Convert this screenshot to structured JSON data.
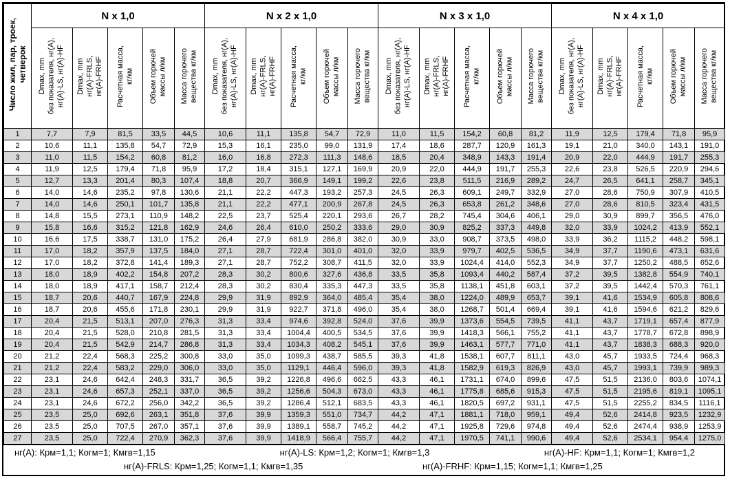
{
  "table": {
    "first_col_header": "Число жил, пар, троек,\nчетверок",
    "groups": [
      {
        "label": "N x 1,0"
      },
      {
        "label": "N x 2 x 1,0"
      },
      {
        "label": "N x 3 x 1,0"
      },
      {
        "label": "N x 4 x 1,0"
      }
    ],
    "sub_headers": [
      "Dmax, mm\nбез показателя, нг(A),\nнг(A)-LS, нг(A)-HF",
      "Dmax, mm\nнг(A)-FRLS,\nнг(A)-FRHF",
      "Расчетная масса,\nкг/км",
      "Объем горючей\nмассы л/км",
      "Масса горючего\nвещества кг/км"
    ],
    "rows": [
      {
        "n": "1",
        "values": [
          "7,7",
          "7,9",
          "81,5",
          "33,5",
          "44,5",
          "10,6",
          "11,1",
          "135,8",
          "54,7",
          "72,9",
          "11,0",
          "11,5",
          "154,2",
          "60,8",
          "81,2",
          "11,9",
          "12,5",
          "179,4",
          "71,8",
          "95,9"
        ]
      },
      {
        "n": "2",
        "values": [
          "10,6",
          "11,1",
          "135,8",
          "54,7",
          "72,9",
          "15,3",
          "16,1",
          "235,0",
          "99,0",
          "131,9",
          "17,4",
          "18,6",
          "287,7",
          "120,9",
          "161,3",
          "19,1",
          "21,0",
          "340,0",
          "143,1",
          "191,0"
        ]
      },
      {
        "n": "3",
        "values": [
          "11,0",
          "11,5",
          "154,2",
          "60,8",
          "81,2",
          "16,0",
          "16,8",
          "272,3",
          "111,3",
          "148,6",
          "18,5",
          "20,4",
          "348,9",
          "143,3",
          "191,4",
          "20,9",
          "22,0",
          "444,9",
          "191,7",
          "255,3"
        ]
      },
      {
        "n": "4",
        "values": [
          "11,9",
          "12,5",
          "179,4",
          "71,8",
          "95,9",
          "17,2",
          "18,4",
          "315,1",
          "127,1",
          "169,9",
          "20,9",
          "22,0",
          "444,9",
          "191,7",
          "255,3",
          "22,6",
          "23,8",
          "526,5",
          "220,9",
          "294,6"
        ]
      },
      {
        "n": "5",
        "values": [
          "12,7",
          "13,3",
          "201,4",
          "80,3",
          "107,4",
          "18,8",
          "20,7",
          "366,9",
          "149,1",
          "199,2",
          "22,6",
          "23,8",
          "511,5",
          "216,9",
          "289,2",
          "24,7",
          "26,5",
          "641,1",
          "258,7",
          "345,1"
        ]
      },
      {
        "n": "6",
        "values": [
          "14,0",
          "14,6",
          "235,2",
          "97,8",
          "130,6",
          "21,1",
          "22,2",
          "447,3",
          "193,2",
          "257,3",
          "24,5",
          "26,3",
          "609,1",
          "249,7",
          "332,9",
          "27,0",
          "28,6",
          "750,9",
          "307,9",
          "410,5"
        ]
      },
      {
        "n": "7",
        "values": [
          "14,0",
          "14,6",
          "250,1",
          "101,7",
          "135,8",
          "21,1",
          "22,2",
          "477,1",
          "200,9",
          "267,8",
          "24,5",
          "26,3",
          "653,8",
          "261,2",
          "348,6",
          "27,0",
          "28,6",
          "810,5",
          "323,4",
          "431,5"
        ]
      },
      {
        "n": "8",
        "values": [
          "14,8",
          "15,5",
          "273,1",
          "110,9",
          "148,2",
          "22,5",
          "23,7",
          "525,4",
          "220,1",
          "293,6",
          "26,7",
          "28,2",
          "745,4",
          "304,6",
          "406,1",
          "29,0",
          "30,9",
          "899,7",
          "356,5",
          "476,0"
        ]
      },
      {
        "n": "9",
        "values": [
          "15,8",
          "16,6",
          "315,2",
          "121,8",
          "162,9",
          "24,6",
          "26,4",
          "610,0",
          "250,2",
          "333,6",
          "29,0",
          "30,9",
          "825,2",
          "337,3",
          "449,8",
          "32,0",
          "33,9",
          "1024,2",
          "413,9",
          "552,1"
        ]
      },
      {
        "n": "10",
        "values": [
          "16,6",
          "17,5",
          "338,7",
          "131,0",
          "175,2",
          "26,4",
          "27,9",
          "681,9",
          "286,8",
          "382,0",
          "30,9",
          "33,0",
          "908,7",
          "373,5",
          "498,0",
          "33,9",
          "36,2",
          "1115,2",
          "448,2",
          "598,1"
        ]
      },
      {
        "n": "11",
        "values": [
          "17,0",
          "18,2",
          "357,9",
          "137,5",
          "184,0",
          "27,1",
          "28,7",
          "722,4",
          "301,0",
          "401,0",
          "32,0",
          "33,9",
          "979,7",
          "402,5",
          "536,5",
          "34,9",
          "37,7",
          "1190,6",
          "473,1",
          "631,6"
        ]
      },
      {
        "n": "12",
        "values": [
          "17,0",
          "18,2",
          "372,8",
          "141,4",
          "189,3",
          "27,1",
          "28,7",
          "752,2",
          "308,7",
          "411,5",
          "32,0",
          "33,9",
          "1024,4",
          "414,0",
          "552,3",
          "34,9",
          "37,7",
          "1250,2",
          "488,5",
          "652,6"
        ]
      },
      {
        "n": "13",
        "values": [
          "18,0",
          "18,9",
          "402,2",
          "154,8",
          "207,2",
          "28,3",
          "30,2",
          "800,6",
          "327,6",
          "436,8",
          "33,5",
          "35,8",
          "1093,4",
          "440,2",
          "587,4",
          "37,2",
          "39,5",
          "1382,8",
          "554,9",
          "740,1"
        ]
      },
      {
        "n": "14",
        "values": [
          "18,0",
          "18,9",
          "417,1",
          "158,7",
          "212,4",
          "28,3",
          "30,2",
          "830,4",
          "335,3",
          "447,3",
          "33,5",
          "35,8",
          "1138,1",
          "451,8",
          "603,1",
          "37,2",
          "39,5",
          "1442,4",
          "570,3",
          "761,1"
        ]
      },
      {
        "n": "15",
        "values": [
          "18,7",
          "20,6",
          "440,7",
          "167,9",
          "224,8",
          "29,9",
          "31,9",
          "892,9",
          "364,0",
          "485,4",
          "35,4",
          "38,0",
          "1224,0",
          "489,9",
          "653,7",
          "39,1",
          "41,6",
          "1534,9",
          "605,8",
          "808,6"
        ]
      },
      {
        "n": "16",
        "values": [
          "18,7",
          "20,6",
          "455,6",
          "171,8",
          "230,1",
          "29,9",
          "31,9",
          "922,7",
          "371,8",
          "496,0",
          "35,4",
          "38,0",
          "1268,7",
          "501,4",
          "669,4",
          "39,1",
          "41,6",
          "1594,6",
          "621,2",
          "829,6"
        ]
      },
      {
        "n": "17",
        "values": [
          "20,4",
          "21,5",
          "513,1",
          "207,0",
          "276,3",
          "31,3",
          "33,4",
          "974,6",
          "392,8",
          "524,0",
          "37,6",
          "39,9",
          "1373,6",
          "554,5",
          "739,5",
          "41,1",
          "43,7",
          "1719,1",
          "657,4",
          "877,9"
        ]
      },
      {
        "n": "18",
        "values": [
          "20,4",
          "21,5",
          "528,0",
          "210,8",
          "281,5",
          "31,3",
          "33,4",
          "1004,4",
          "400,5",
          "534,5",
          "37,6",
          "39,9",
          "1418,3",
          "566,1",
          "755,2",
          "41,1",
          "43,7",
          "1778,7",
          "672,8",
          "898,9"
        ]
      },
      {
        "n": "19",
        "values": [
          "20,4",
          "21,5",
          "542,9",
          "214,7",
          "286,8",
          "31,3",
          "33,4",
          "1034,3",
          "408,2",
          "545,1",
          "37,6",
          "39,9",
          "1463,1",
          "577,7",
          "771,0",
          "41,1",
          "43,7",
          "1838,3",
          "688,3",
          "920,0"
        ]
      },
      {
        "n": "20",
        "values": [
          "21,2",
          "22,4",
          "568,3",
          "225,2",
          "300,8",
          "33,0",
          "35,0",
          "1099,3",
          "438,7",
          "585,5",
          "39,3",
          "41,8",
          "1538,1",
          "607,7",
          "811,1",
          "43,0",
          "45,7",
          "1933,5",
          "724,4",
          "968,3"
        ]
      },
      {
        "n": "21",
        "values": [
          "21,2",
          "22,4",
          "583,2",
          "229,0",
          "306,0",
          "33,0",
          "35,0",
          "1129,1",
          "446,4",
          "596,0",
          "39,3",
          "41,8",
          "1582,9",
          "619,3",
          "826,9",
          "43,0",
          "45,7",
          "1993,1",
          "739,9",
          "989,3"
        ]
      },
      {
        "n": "22",
        "values": [
          "23,1",
          "24,6",
          "642,4",
          "248,3",
          "331,7",
          "36,5",
          "39,2",
          "1226,8",
          "496,6",
          "662,5",
          "43,3",
          "46,1",
          "1731,1",
          "674,0",
          "899,6",
          "47,5",
          "51,5",
          "2136,0",
          "803,6",
          "1074,1"
        ]
      },
      {
        "n": "23",
        "values": [
          "23,1",
          "24,6",
          "657,3",
          "252,1",
          "337,0",
          "36,5",
          "39,2",
          "1256,6",
          "504,3",
          "673,0",
          "43,3",
          "46,1",
          "1775,8",
          "685,6",
          "915,3",
          "47,5",
          "51,5",
          "2195,6",
          "819,1",
          "1095,1"
        ]
      },
      {
        "n": "24",
        "values": [
          "23,1",
          "24,6",
          "672,2",
          "256,0",
          "342,2",
          "36,5",
          "39,2",
          "1286,4",
          "512,1",
          "683,5",
          "43,3",
          "46,1",
          "1820,5",
          "697,2",
          "931,1",
          "47,5",
          "51,5",
          "2255,2",
          "834,5",
          "1116,1"
        ]
      },
      {
        "n": "25",
        "values": [
          "23,5",
          "25,0",
          "692,6",
          "263,1",
          "351,8",
          "37,6",
          "39,9",
          "1359,3",
          "551,0",
          "734,7",
          "44,2",
          "47,1",
          "1881,1",
          "718,0",
          "959,1",
          "49,4",
          "52,6",
          "2414,8",
          "923,5",
          "1232,9"
        ]
      },
      {
        "n": "26",
        "values": [
          "23,5",
          "25,0",
          "707,5",
          "267,0",
          "357,1",
          "37,6",
          "39,9",
          "1389,1",
          "558,7",
          "745,2",
          "44,2",
          "47,1",
          "1925,8",
          "729,6",
          "974,8",
          "49,4",
          "52,6",
          "2474,4",
          "938,9",
          "1253,9"
        ]
      },
      {
        "n": "27",
        "values": [
          "23,5",
          "25,0",
          "722,4",
          "270,9",
          "362,3",
          "37,6",
          "39,9",
          "1418,9",
          "566,4",
          "755,7",
          "44,2",
          "47,1",
          "1970,5",
          "741,1",
          "990,6",
          "49,4",
          "52,6",
          "2534,1",
          "954,4",
          "1275,0"
        ]
      }
    ]
  },
  "footer": {
    "line1": [
      "нг(A): Крм=1,1;  Когм=1;  Кмгв=1,15",
      "нг(A)-LS: Крм=1,2;  Когм=1;  Кмгв=1,3",
      "нг(A)-HF: Крм=1,1;  Когм=1;  Кмгв=1,2"
    ],
    "line2": [
      "нг(A)-FRLS: Крм=1,25;  Когм=1,1;  Кмгв=1,35",
      "нг(A)-FRHF: Крм=1,15;  Когм=1,1;  Кмгв=1,25"
    ]
  },
  "colors": {
    "row_shade": "#d8d8d8",
    "border": "#000000"
  }
}
